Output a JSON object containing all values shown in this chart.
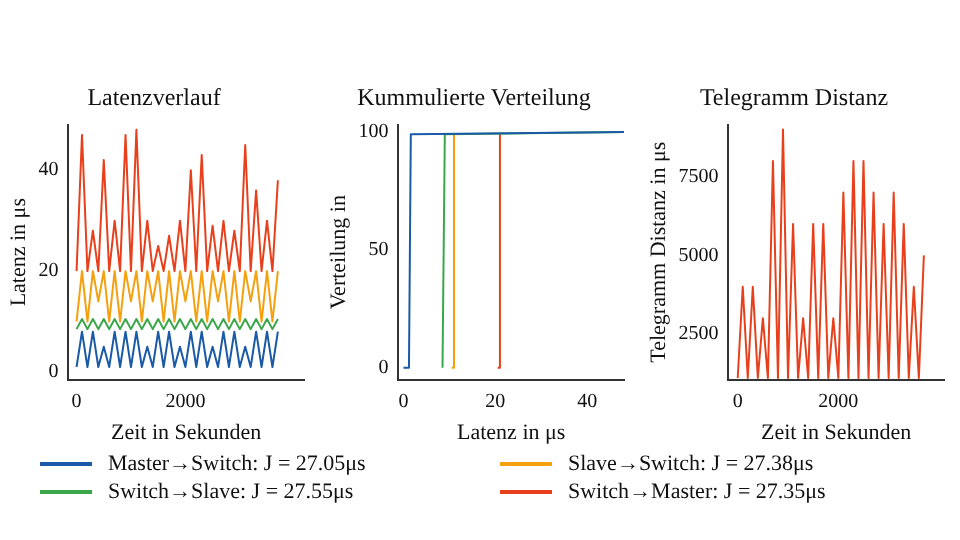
{
  "chart_data": [
    {
      "type": "line",
      "title": "Latenzverlauf",
      "xlabel": "Zeit in Sekunden",
      "ylabel": "Latenz in μs",
      "xlim": [
        -150,
        4180
      ],
      "xticks": [
        0,
        2000
      ],
      "ylim": [
        -1.5,
        49
      ],
      "yticks": [
        0,
        20,
        40
      ],
      "legend": "bottom",
      "x": [
        0,
        100,
        200,
        300,
        400,
        500,
        600,
        700,
        800,
        900,
        1000,
        1100,
        1200,
        1300,
        1400,
        1500,
        1600,
        1700,
        1800,
        1900,
        2000,
        2100,
        2200,
        2300,
        2400,
        2500,
        2600,
        2700,
        2800,
        2900,
        3000,
        3100,
        3200,
        3300,
        3400,
        3500,
        3600,
        3700
      ],
      "series": [
        {
          "name": "Master→Switch: J = 27.05μs",
          "color": "#1a5aa6",
          "values": [
            1,
            8,
            1,
            8,
            1,
            5,
            1,
            8,
            1,
            8,
            1,
            8,
            1,
            5,
            1,
            8,
            1,
            8,
            1,
            5,
            1,
            8,
            1,
            8,
            1,
            5,
            1,
            8,
            1,
            8,
            1,
            5,
            1,
            8,
            1,
            8,
            1,
            8
          ]
        },
        {
          "name": "Switch→Slave: J = 27.55μs",
          "color": "#3aa64a",
          "values": [
            8.5,
            10.5,
            8.5,
            10.5,
            8.5,
            10.5,
            8.5,
            10.5,
            8.5,
            10.5,
            8.5,
            10.5,
            8.5,
            10.5,
            8.5,
            10.5,
            8.5,
            10.5,
            8.5,
            10.5,
            8.5,
            10.5,
            8.5,
            10.5,
            8.5,
            10.5,
            8.5,
            10.5,
            8.5,
            10.5,
            8.5,
            10.5,
            8.5,
            10.5,
            8.5,
            10.5,
            8.5,
            10.5
          ]
        },
        {
          "name": "Slave→Switch: J = 27.38μs",
          "color": "#f5a00f",
          "values": [
            10,
            20,
            10,
            20,
            14,
            20,
            10,
            20,
            10,
            20,
            14,
            20,
            10,
            20,
            14,
            20,
            10,
            20,
            10,
            20,
            14,
            20,
            10,
            20,
            10,
            20,
            14,
            20,
            10,
            20,
            10,
            20,
            14,
            20,
            10,
            20,
            10,
            20
          ]
        },
        {
          "name": "Switch→Master: J = 27.35μs",
          "color": "#e8401c",
          "values": [
            20,
            47,
            20,
            28,
            20,
            42,
            20,
            30,
            20,
            47,
            20,
            48,
            20,
            30,
            20,
            25,
            20,
            27,
            20,
            30,
            20,
            40,
            20,
            43,
            20,
            29,
            20,
            30,
            20,
            28,
            20,
            45,
            20,
            36,
            20,
            30,
            20,
            38
          ]
        }
      ]
    },
    {
      "type": "line",
      "title": "Kummulierte Verteilung",
      "xlabel": "Latenz in μs",
      "ylabel": "Verteilung in",
      "xlim": [
        -1.1,
        48
      ],
      "xticks": [
        0,
        20,
        40
      ],
      "ylim": [
        -5,
        103
      ],
      "yticks": [
        0,
        50,
        100
      ],
      "series": [
        {
          "color": "#1a5aa6",
          "x": [
            0,
            1.2,
            1.6,
            48
          ],
          "values": [
            0,
            0,
            99,
            100
          ]
        },
        {
          "color": "#3aa64a",
          "x": [
            8.5,
            8.6,
            9,
            48
          ],
          "values": [
            0,
            0,
            99,
            100
          ]
        },
        {
          "color": "#f5a00f",
          "x": [
            10.5,
            10.6,
            11
          ],
          "values": [
            0,
            0,
            99
          ]
        },
        {
          "color": "#e8401c",
          "x": [
            20.5,
            20.6,
            21
          ],
          "values": [
            0,
            0,
            99
          ]
        }
      ]
    },
    {
      "type": "line",
      "title": "Telegramm Distanz",
      "xlabel": "Zeit in Sekunden",
      "ylabel": "Telegramm Distanz in μs",
      "xlim": [
        -185,
        4100
      ],
      "xticks": [
        0,
        2000
      ],
      "ylim": [
        1050,
        9150
      ],
      "yticks": [
        2500,
        5000,
        7500
      ],
      "x": [
        0,
        100,
        200,
        300,
        400,
        500,
        600,
        700,
        800,
        900,
        1000,
        1100,
        1200,
        1300,
        1400,
        1500,
        1600,
        1700,
        1800,
        1900,
        2000,
        2100,
        2200,
        2300,
        2400,
        2500,
        2600,
        2700,
        2800,
        2900,
        3000,
        3100,
        3200,
        3300,
        3400,
        3500,
        3600,
        3700
      ],
      "series": [
        {
          "color": "#e8401c",
          "values": [
            1100,
            4000,
            1100,
            4000,
            1100,
            3000,
            1100,
            8000,
            1100,
            9000,
            1100,
            6000,
            1100,
            3000,
            1100,
            6000,
            1100,
            6000,
            1100,
            3000,
            1100,
            7000,
            1100,
            8000,
            1100,
            8000,
            1100,
            7000,
            1100,
            6000,
            1100,
            7000,
            1100,
            6000,
            1100,
            4000,
            1100,
            5000
          ]
        }
      ]
    }
  ]
}
